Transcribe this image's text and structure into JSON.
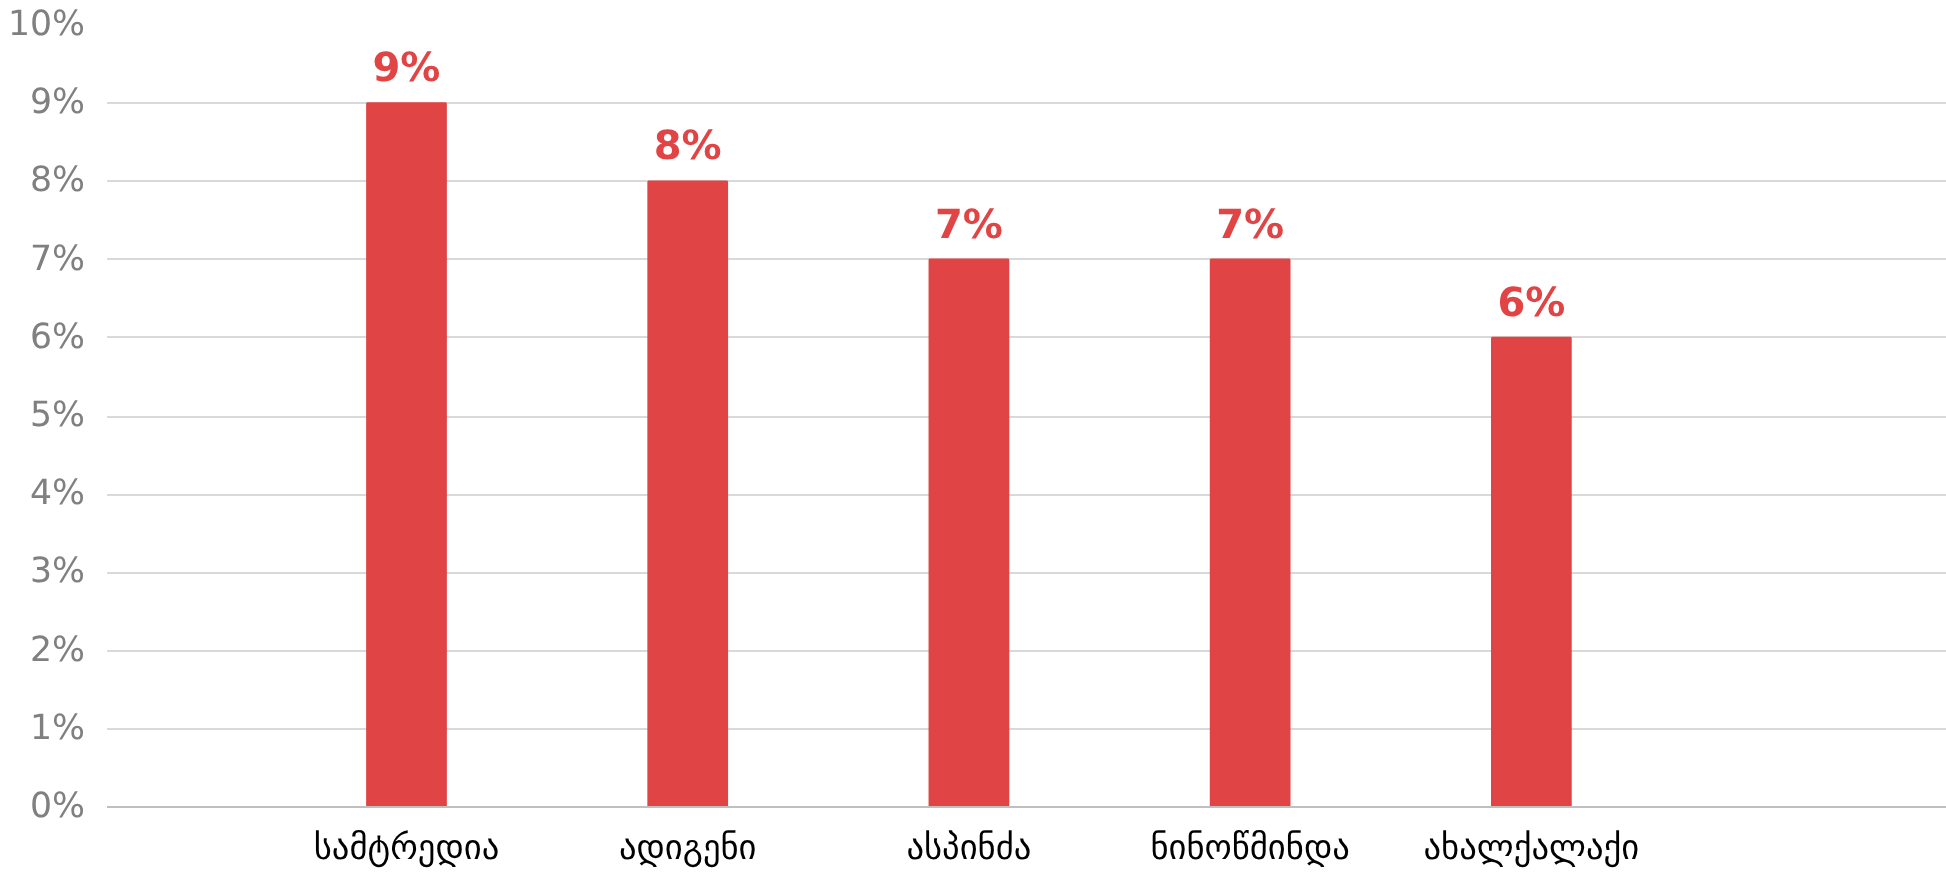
{
  "chart_data": {
    "type": "bar",
    "categories": [
      "სამტრედია",
      "ადიგენი",
      "ასპინძა",
      "ნინოწმინდა",
      "ახალქალაქი"
    ],
    "values": [
      9,
      8,
      7,
      7,
      6
    ],
    "color": "#e04445",
    "value_labels": [
      "9%",
      "8%",
      "7%",
      "7%",
      "6%"
    ],
    "ylim": [
      0,
      10
    ],
    "yticks": [
      {
        "value": 0,
        "label": "0%"
      },
      {
        "value": 1,
        "label": "1%"
      },
      {
        "value": 2,
        "label": "2%"
      },
      {
        "value": 3,
        "label": "3%"
      },
      {
        "value": 4,
        "label": "4%"
      },
      {
        "value": 5,
        "label": "5%"
      },
      {
        "value": 6,
        "label": "6%"
      },
      {
        "value": 7,
        "label": "7%"
      },
      {
        "value": 8,
        "label": "8%"
      },
      {
        "value": 9,
        "label": "9%"
      },
      {
        "value": 10,
        "label": "10%"
      }
    ],
    "grid": "y"
  }
}
